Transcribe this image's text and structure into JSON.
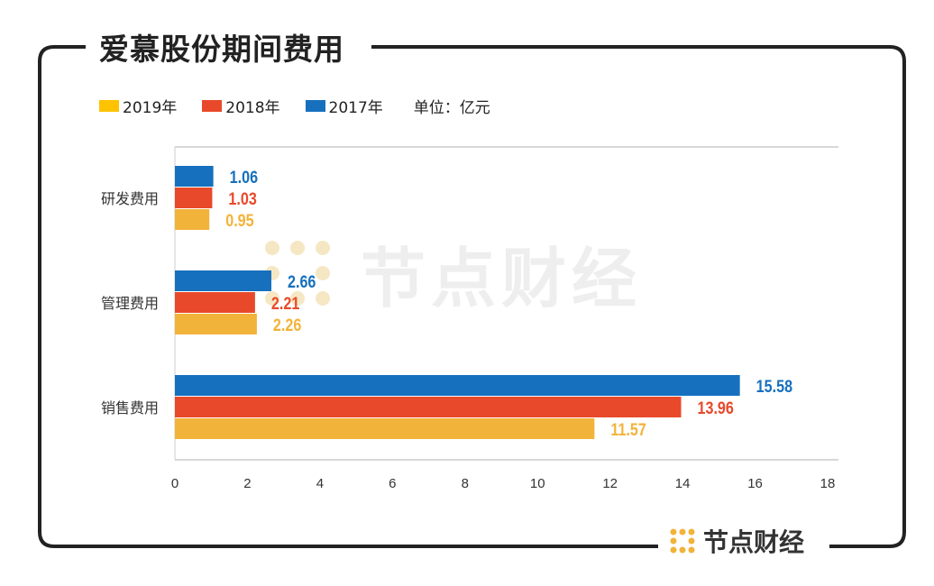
{
  "title": "爱慕股份期间费用",
  "legend": [
    {
      "label": "2019年",
      "color": "#fdc300"
    },
    {
      "label": "2018年",
      "color": "#e8492a"
    },
    {
      "label": "2017年",
      "color": "#1670be"
    }
  ],
  "unit": "单位：亿元",
  "brand": "节点财经",
  "chart_data": {
    "type": "bar",
    "orientation": "horizontal",
    "title": "爱慕股份期间费用",
    "categories": [
      "研发费用",
      "管理费用",
      "销售费用"
    ],
    "series": [
      {
        "name": "2017年",
        "color": "#1670be",
        "values": [
          1.06,
          2.66,
          15.58
        ]
      },
      {
        "name": "2018年",
        "color": "#e8492a",
        "values": [
          1.03,
          2.21,
          13.96
        ]
      },
      {
        "name": "2019年",
        "color": "#f2b33a",
        "values": [
          0.95,
          2.26,
          11.57
        ]
      }
    ],
    "xlim": [
      0,
      18
    ],
    "xticks": [
      0,
      2,
      4,
      6,
      8,
      10,
      12,
      14,
      16,
      18
    ],
    "xlabel": "",
    "ylabel": "",
    "legend_position": "top-left"
  }
}
